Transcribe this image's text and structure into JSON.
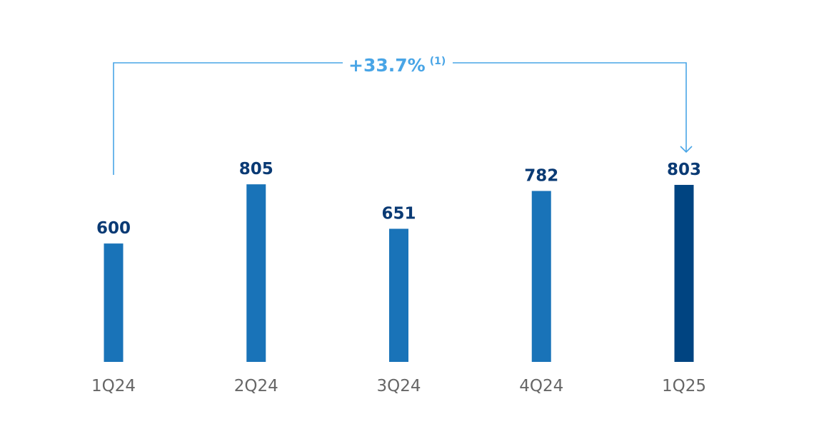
{
  "chart_data": {
    "type": "bar",
    "categories": [
      "1Q24",
      "2Q24",
      "3Q24",
      "4Q24",
      "1Q25"
    ],
    "values": [
      600,
      805,
      651,
      782,
      803
    ],
    "colors": [
      "#1973b8",
      "#1973b8",
      "#1973b8",
      "#1973b8",
      "#004481"
    ],
    "ylim": [
      190,
      850
    ],
    "annotation": {
      "text": "+33.7%",
      "note": "(1)"
    }
  }
}
